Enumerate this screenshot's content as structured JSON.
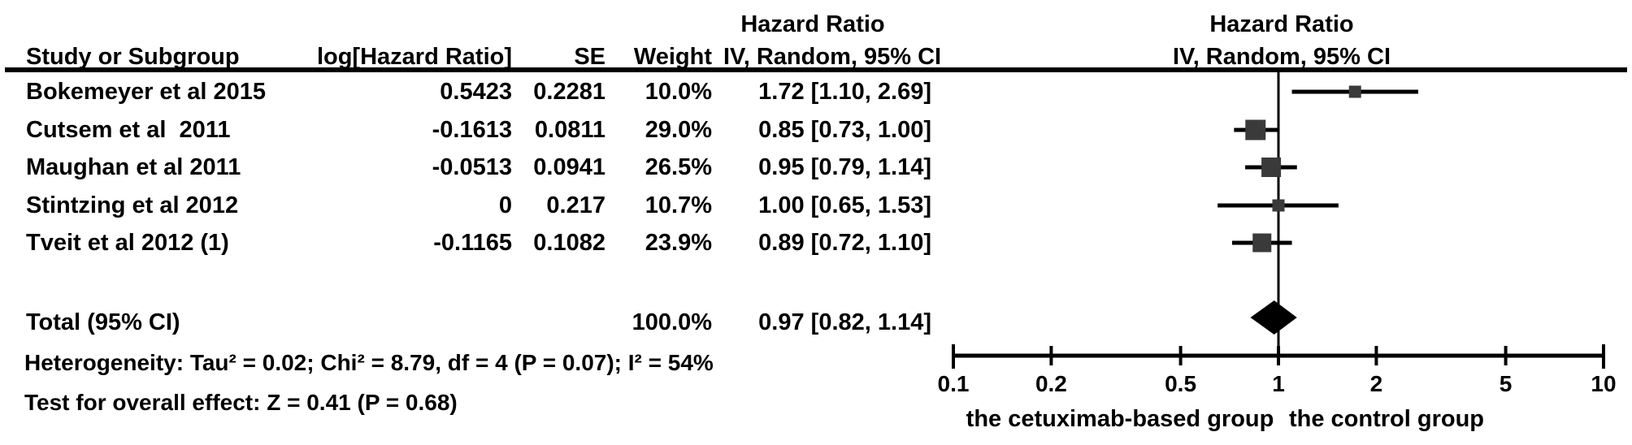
{
  "table": {
    "headers": {
      "study": "Study or Subgroup",
      "log_hr": "log[Hazard Ratio]",
      "se": "SE",
      "weight": "Weight",
      "ci_col_line1": "Hazard Ratio",
      "ci_col_line2": "IV, Random, 95% CI",
      "plot_col_line1": "Hazard Ratio",
      "plot_col_line2": "IV, Random, 95% CI"
    },
    "rows": [
      {
        "study": "Bokemeyer et al 2015",
        "log_hr": "0.5423",
        "se": "0.2281",
        "weight": "10.0%",
        "ci": "1.72 [1.10, 2.69]"
      },
      {
        "study": "Cutsem et al  2011",
        "log_hr": "-0.1613",
        "se": "0.0811",
        "weight": "29.0%",
        "ci": "0.85 [0.73, 1.00]"
      },
      {
        "study": "Maughan et al 2011",
        "log_hr": "-0.0513",
        "se": "0.0941",
        "weight": "26.5%",
        "ci": "0.95 [0.79, 1.14]"
      },
      {
        "study": "Stintzing et al 2012",
        "log_hr": "0",
        "se": "0.217",
        "weight": "10.7%",
        "ci": "1.00 [0.65, 1.53]"
      },
      {
        "study": "Tveit et al 2012 (1)",
        "log_hr": "-0.1165",
        "se": "0.1082",
        "weight": "23.9%",
        "ci": "0.89 [0.72, 1.10]"
      }
    ],
    "total": {
      "label": "Total (95% CI)",
      "weight": "100.0%",
      "ci": "0.97 [0.82, 1.14]"
    },
    "heterogeneity": "Heterogeneity: Tau² = 0.02; Chi² = 8.79, df = 4 (P = 0.07); I² = 54%",
    "overall_effect": "Test for overall effect: Z = 0.41 (P = 0.68)"
  },
  "chart_data": {
    "type": "forest",
    "x_scale": "log10",
    "x_range": [
      0.1,
      10
    ],
    "axis_ticks": [
      "0.1",
      "0.2",
      "0.5",
      "1",
      "2",
      "5",
      "10"
    ],
    "null_line": 1,
    "studies": [
      {
        "name": "Bokemeyer et al 2015",
        "hr": 1.72,
        "ci_low": 1.1,
        "ci_high": 2.69,
        "weight_pct": 10.0
      },
      {
        "name": "Cutsem et al 2011",
        "hr": 0.85,
        "ci_low": 0.73,
        "ci_high": 1.0,
        "weight_pct": 29.0
      },
      {
        "name": "Maughan et al 2011",
        "hr": 0.95,
        "ci_low": 0.79,
        "ci_high": 1.14,
        "weight_pct": 26.5
      },
      {
        "name": "Stintzing et al 2012",
        "hr": 1.0,
        "ci_low": 0.65,
        "ci_high": 1.53,
        "weight_pct": 10.7
      },
      {
        "name": "Tveit et al 2012 (1)",
        "hr": 0.89,
        "ci_low": 0.72,
        "ci_high": 1.1,
        "weight_pct": 23.9
      }
    ],
    "total": {
      "hr": 0.97,
      "ci_low": 0.82,
      "ci_high": 1.14,
      "weight_pct": 100.0
    },
    "xlabel_left": "the cetuximab-based group",
    "xlabel_right": "the control group",
    "marker_color": "#3a3a3a",
    "diamond_color": "#000000",
    "line_color": "#000000",
    "legend_position": "none",
    "grid": false
  }
}
